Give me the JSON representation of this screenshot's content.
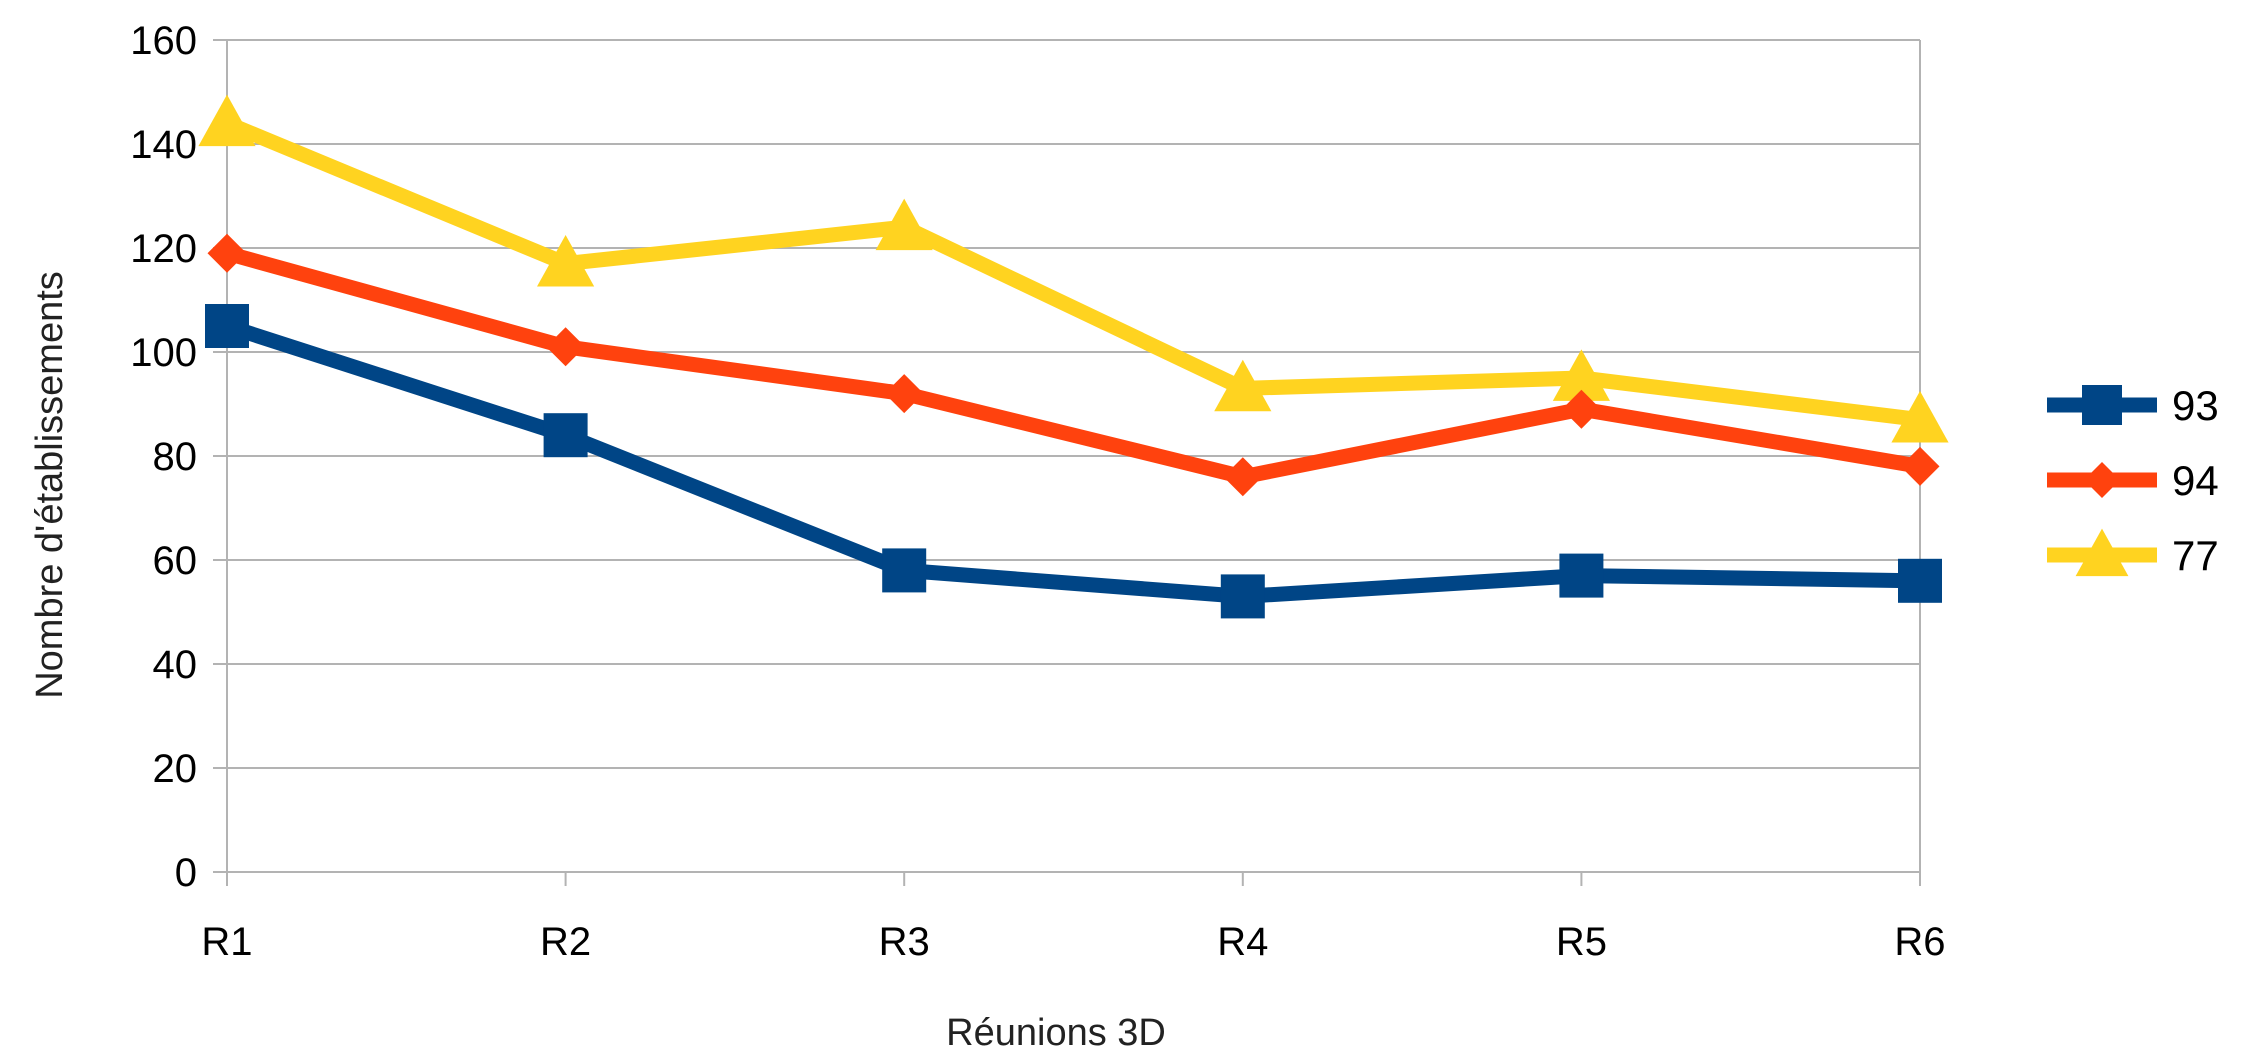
{
  "chart_data": {
    "type": "line",
    "title": "",
    "xlabel": "Réunions 3D",
    "ylabel": "Nombre d'établissements",
    "categories": [
      "R1",
      "R2",
      "R3",
      "R4",
      "R5",
      "R6"
    ],
    "ylim": [
      0,
      160
    ],
    "yticks": [
      0,
      20,
      40,
      60,
      80,
      100,
      120,
      140,
      160
    ],
    "grid": true,
    "legend_position": "right",
    "series": [
      {
        "name": "93",
        "values": [
          105,
          84,
          58,
          53,
          57,
          56
        ],
        "color": "#004586",
        "marker": "square"
      },
      {
        "name": "94",
        "values": [
          119,
          101,
          92,
          76,
          89,
          78
        ],
        "color": "#ff420e",
        "marker": "diamond"
      },
      {
        "name": "77",
        "values": [
          144,
          117,
          124,
          93,
          95,
          87
        ],
        "color": "#ffd320",
        "marker": "triangle"
      }
    ]
  }
}
